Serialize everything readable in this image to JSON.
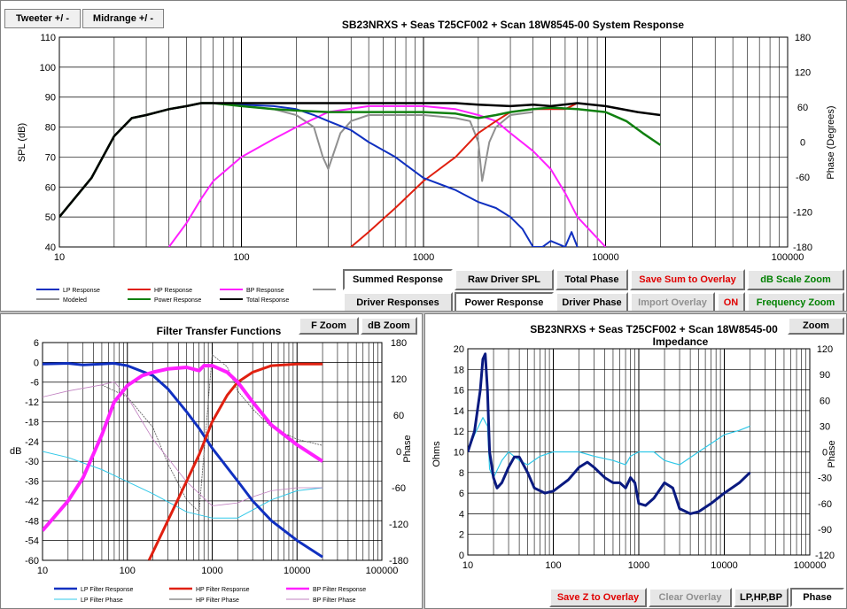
{
  "tabs": [
    {
      "label": "Tweeter  +/ -"
    },
    {
      "label": "Midrange  +/ -"
    }
  ],
  "colors": {
    "lp": "#1030c0",
    "hp": "#e02010",
    "bp": "#ff20ff",
    "gray": "#909090",
    "green": "#108010",
    "black": "#000000",
    "cyan": "#30c8e8",
    "navy": "#0a1a80"
  },
  "system_chart": {
    "title": "SB23NRXS  + Seas T25CF002  + Scan 18W8545-00   System Response",
    "ylabel": "SPL (dB)",
    "y2label": "Phase (Degrees)",
    "yticks": [
      "110",
      "100",
      "90",
      "80",
      "70",
      "60",
      "50",
      "40"
    ],
    "y2ticks": [
      "180",
      "120",
      "60",
      "0",
      "-60",
      "-120",
      "-180"
    ],
    "xticks": [
      "10",
      "100",
      "1000",
      "10000",
      "100000"
    ],
    "legend": [
      {
        "label": "LP Response"
      },
      {
        "label": "HP Response"
      },
      {
        "label": "BP Response"
      },
      {
        "label": "Modeled"
      },
      {
        "label": "Power Response"
      },
      {
        "label": "Total Response"
      }
    ]
  },
  "buttons": {
    "summed_response": "Summed Response",
    "raw_driver_spl": "Raw Driver SPL",
    "total_phase": "Total Phase",
    "save_sum_overlay": "Save Sum to Overlay",
    "db_scale_zoom": "dB Scale Zoom",
    "driver_responses": "Driver Responses",
    "power_response": "Power Response",
    "driver_phase": "Driver Phase",
    "import_overlay": "Import Overlay",
    "on": "ON",
    "frequency_zoom": "Frequency Zoom",
    "f_zoom": "F Zoom",
    "db_zoom": "dB Zoom",
    "zoom": "Zoom",
    "save_z_overlay": "Save Z to Overlay",
    "clear_overlay": "Clear Overlay",
    "lp_hp_bp": "LP,HP,BP",
    "phase": "Phase"
  },
  "filter_chart": {
    "title": "Filter Transfer  Functions",
    "ylabel": "dB",
    "y2label": "Phase",
    "yticks": [
      "6",
      "0",
      "-6",
      "-12",
      "-18",
      "-24",
      "-30",
      "-36",
      "-42",
      "-48",
      "-54",
      "-60"
    ],
    "y2ticks": [
      "180",
      "120",
      "60",
      "0",
      "-60",
      "-120",
      "-180"
    ],
    "xticks": [
      "10",
      "100",
      "1000",
      "10000",
      "100000"
    ],
    "legend": [
      {
        "label": "LP Filter Response"
      },
      {
        "label": "HP Filter Response"
      },
      {
        "label": "BP Filter Response"
      },
      {
        "label": "LP Filter Phase"
      },
      {
        "label": "HP Filter Phase"
      },
      {
        "label": "BP Filter Phase"
      }
    ]
  },
  "impedance_chart": {
    "title_line1": "SB23NRXS  + Seas T25CF002  + Scan 18W8545-00",
    "title_line2": "Impedance",
    "ylabel": "Ohms",
    "y2label": "Phase",
    "yticks": [
      "20",
      "18",
      "16",
      "14",
      "12",
      "10",
      "8",
      "6",
      "4",
      "2",
      "0"
    ],
    "y2ticks": [
      "120",
      "90",
      "60",
      "30",
      "0",
      "-30",
      "-60",
      "-90",
      "-120"
    ],
    "xticks": [
      "10",
      "100",
      "1000",
      "10000",
      "100000"
    ]
  },
  "chart_data": [
    {
      "type": "line",
      "title": "SB23NRXS  + Seas T25CF002  + Scan 18W8545-00   System Response",
      "xlabel": "",
      "ylabel": "SPL (dB)",
      "y2label": "Phase (Degrees)",
      "xscale": "log",
      "xlim": [
        10,
        100000
      ],
      "ylim": [
        40,
        110
      ],
      "y2lim": [
        -180,
        180
      ],
      "grid": true,
      "series": [
        {
          "name": "Total Response",
          "x": [
            10,
            15,
            20,
            25,
            30,
            40,
            50,
            60,
            70,
            100,
            150,
            200,
            300,
            500,
            700,
            1000,
            1500,
            2000,
            3000,
            4000,
            5000,
            7000,
            10000,
            15000,
            20000
          ],
          "y": [
            50,
            63,
            77,
            83,
            84,
            86,
            87,
            88,
            88,
            88,
            88,
            88,
            88,
            88,
            88,
            88,
            88,
            87.5,
            87,
            87.5,
            87,
            88,
            87,
            85,
            84
          ]
        },
        {
          "name": "Power Response",
          "x": [
            10,
            15,
            20,
            25,
            30,
            40,
            50,
            60,
            70,
            100,
            150,
            200,
            300,
            500,
            700,
            1000,
            1500,
            2000,
            2500,
            3000,
            4000,
            5000,
            7000,
            10000,
            13000,
            16000,
            20000
          ],
          "y": [
            50,
            63,
            77,
            83,
            84,
            86,
            87,
            88,
            88,
            87,
            86,
            85.5,
            85,
            85,
            85,
            85,
            84.5,
            83,
            84,
            85,
            86,
            86.5,
            86,
            85,
            82,
            78,
            74
          ]
        },
        {
          "name": "LP Response",
          "x": [
            60,
            70,
            100,
            150,
            200,
            250,
            300,
            400,
            500,
            700,
            1000,
            1500,
            2000,
            2500,
            3000,
            3500,
            4000,
            4500,
            5000,
            6000,
            6500,
            7000
          ],
          "y": [
            88,
            88,
            87.5,
            87,
            86,
            84,
            82,
            79,
            75,
            70,
            63,
            59,
            55,
            53,
            50,
            46,
            40,
            40,
            42,
            40,
            45,
            40
          ]
        },
        {
          "name": "HP Response",
          "x": [
            400,
            500,
            700,
            1000,
            1500,
            2000,
            2500,
            3000,
            4000,
            5000,
            6000,
            7000
          ],
          "y": [
            40,
            45,
            53,
            62,
            70,
            78,
            82,
            85,
            86,
            86,
            86,
            88
          ]
        },
        {
          "name": "BP Response",
          "x": [
            40,
            50,
            60,
            70,
            100,
            150,
            200,
            300,
            500,
            700,
            1000,
            1500,
            2000,
            2500,
            3000,
            4000,
            5000,
            6000,
            7000,
            10000
          ],
          "y": [
            40,
            48,
            56,
            62,
            70,
            76,
            80,
            85,
            87,
            87,
            87,
            86,
            84,
            82,
            78,
            72,
            66,
            58,
            50,
            40
          ]
        },
        {
          "name": "Modeled",
          "x": [
            60,
            70,
            100,
            150,
            200,
            250,
            280,
            300,
            350,
            400,
            500,
            700,
            1000,
            1500,
            1800,
            2000,
            2100,
            2300,
            2500,
            3000,
            4000
          ],
          "y": [
            88,
            88,
            87,
            86,
            84,
            80,
            70,
            66,
            78,
            82,
            84,
            84,
            84,
            83,
            82,
            75,
            62,
            75,
            80,
            84,
            85
          ]
        }
      ]
    },
    {
      "type": "line",
      "title": "Filter Transfer  Functions",
      "xlabel": "",
      "ylabel": "dB",
      "y2label": "Phase",
      "xscale": "log",
      "xlim": [
        10,
        100000
      ],
      "ylim": [
        -60,
        6
      ],
      "y2lim": [
        -180,
        180
      ],
      "grid": true,
      "series": [
        {
          "name": "LP Filter Response",
          "x": [
            10,
            20,
            30,
            50,
            70,
            100,
            200,
            300,
            500,
            700,
            1000,
            2000,
            3000,
            5000,
            10000,
            20000
          ],
          "y": [
            -0.5,
            -0.3,
            -0.8,
            -0.5,
            -0.3,
            -1,
            -4,
            -8,
            -15,
            -20,
            -26,
            -36,
            -42,
            -48,
            -54,
            -59
          ]
        },
        {
          "name": "HP Filter Response",
          "x": [
            180,
            300,
            500,
            700,
            1000,
            1500,
            2000,
            3000,
            5000,
            10000,
            20000
          ],
          "y": [
            -60,
            -48,
            -36,
            -28,
            -18,
            -10,
            -6,
            -3,
            -1,
            -0.5,
            -0.5
          ]
        },
        {
          "name": "BP Filter Response",
          "x": [
            10,
            20,
            30,
            50,
            70,
            100,
            150,
            200,
            300,
            500,
            700,
            800,
            1000,
            1500,
            2000,
            3000,
            5000,
            10000,
            20000
          ],
          "y": [
            -51,
            -42,
            -35,
            -22,
            -12,
            -7,
            -4,
            -3,
            -2,
            -1.5,
            -2.5,
            -1,
            -1,
            -3,
            -6,
            -12,
            -19,
            -25,
            -30
          ]
        },
        {
          "name": "LP Filter Phase",
          "x": [
            10,
            20,
            50,
            100,
            200,
            500,
            1000,
            2000,
            5000,
            10000,
            20000
          ],
          "y": [
            0,
            -10,
            -30,
            -50,
            -70,
            -100,
            -110,
            -110,
            -80,
            -65,
            -60
          ]
        },
        {
          "name": "HP Filter Phase",
          "x": [
            50,
            100,
            200,
            300,
            500,
            700,
            1000,
            1500,
            2000,
            3000,
            5000,
            10000,
            20000
          ],
          "y": [
            110,
            90,
            40,
            -20,
            -80,
            -100,
            160,
            140,
            100,
            70,
            40,
            20,
            10
          ]
        },
        {
          "name": "BP Filter Phase",
          "x": [
            10,
            20,
            50,
            70,
            100,
            200,
            500,
            1000,
            2000,
            3000,
            5000,
            10000,
            20000
          ],
          "y": [
            90,
            100,
            110,
            115,
            90,
            20,
            -50,
            -90,
            -85,
            -75,
            -65,
            -60,
            -60
          ]
        }
      ]
    },
    {
      "type": "line",
      "title": "SB23NRXS  + Seas T25CF002  + Scan 18W8545-00 Impedance",
      "xlabel": "",
      "ylabel": "Ohms",
      "y2label": "Phase",
      "xscale": "log",
      "xlim": [
        10,
        100000
      ],
      "ylim": [
        0,
        20
      ],
      "y2lim": [
        -120,
        120
      ],
      "grid": true,
      "series": [
        {
          "name": "Impedance",
          "x": [
            10,
            12,
            14,
            15,
            16,
            17,
            18,
            20,
            22,
            25,
            30,
            35,
            40,
            50,
            60,
            80,
            100,
            150,
            200,
            250,
            300,
            400,
            500,
            600,
            700,
            800,
            900,
            1000,
            1200,
            1500,
            2000,
            2500,
            3000,
            4000,
            5000,
            7000,
            10000,
            15000,
            20000
          ],
          "y": [
            10,
            12,
            16,
            19,
            19.5,
            16,
            10,
            7.5,
            6.5,
            7,
            8.5,
            9.5,
            9.5,
            8,
            6.5,
            6,
            6.2,
            7.3,
            8.5,
            9,
            8.5,
            7.5,
            7,
            7,
            6.5,
            7.5,
            7,
            5,
            4.8,
            5.5,
            7,
            6.5,
            4.5,
            4,
            4.2,
            5,
            6,
            7,
            8
          ]
        },
        {
          "name": "Impedance Phase",
          "x": [
            10,
            12,
            15,
            17,
            18,
            20,
            25,
            30,
            40,
            50,
            70,
            100,
            200,
            300,
            500,
            700,
            800,
            1000,
            1500,
            2000,
            3000,
            5000,
            10000,
            15000,
            20000
          ],
          "y": [
            0,
            20,
            40,
            30,
            -20,
            -30,
            -10,
            0,
            -10,
            -15,
            -5,
            0,
            0,
            -5,
            -10,
            -15,
            -5,
            0,
            0,
            -10,
            -15,
            0,
            20,
            25,
            30
          ]
        }
      ]
    }
  ]
}
